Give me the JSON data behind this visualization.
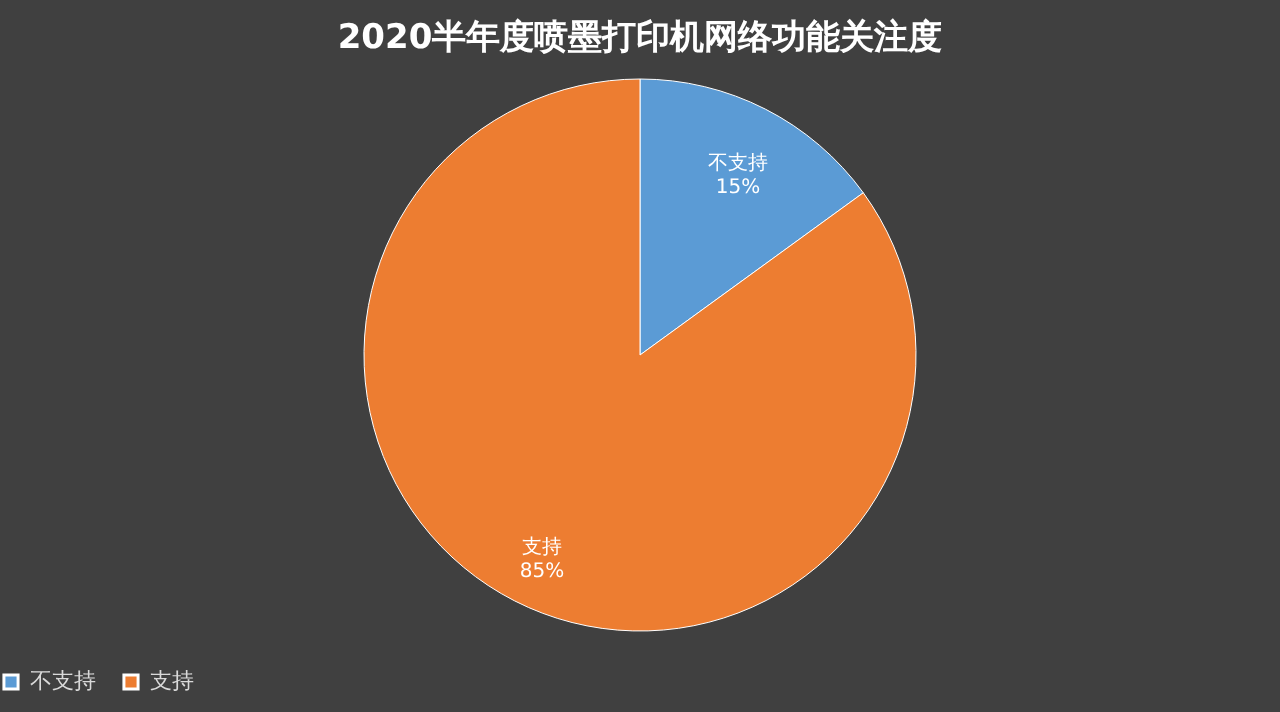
{
  "chart_data": {
    "type": "pie",
    "title": "2020半年度喷墨打印机网络功能关注度",
    "categories": [
      "不支持",
      "支持"
    ],
    "values": [
      15,
      85
    ],
    "colors": [
      "#5b9bd5",
      "#ed7d31"
    ],
    "value_labels": [
      "15%",
      "85%"
    ],
    "legend": "bottom"
  }
}
